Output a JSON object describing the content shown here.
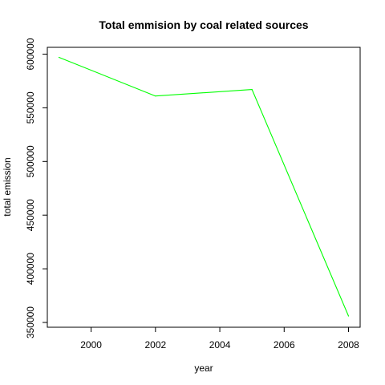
{
  "chart_data": {
    "type": "line",
    "title": "Total emmision by coal related sources",
    "xlabel": "year",
    "ylabel": "total emission",
    "x": [
      1999,
      2002,
      2005,
      2008
    ],
    "series": [
      {
        "values": [
          597000,
          561000,
          567000,
          356000
        ],
        "color": "#00ff00"
      }
    ],
    "xlim": [
      1999,
      2008
    ],
    "ylim": [
      356000,
      597000
    ],
    "xticks": [
      2000,
      2002,
      2004,
      2006,
      2008
    ],
    "yticks": [
      350000,
      400000,
      450000,
      500000,
      550000,
      600000
    ],
    "xtick_labels": [
      "2000",
      "2002",
      "2004",
      "2006",
      "2008"
    ],
    "ytick_labels": [
      "350000",
      "400000",
      "450000",
      "500000",
      "550000",
      "600000"
    ],
    "grid": false,
    "legend": "none",
    "axis_color": "#000000"
  }
}
